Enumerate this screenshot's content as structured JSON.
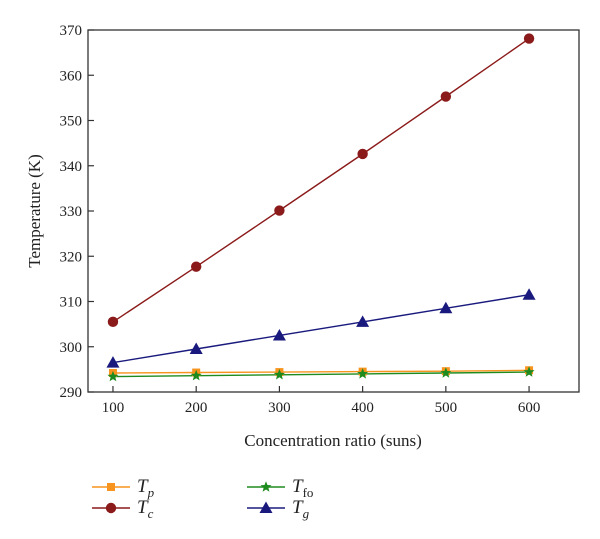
{
  "chart_data": {
    "type": "line",
    "xlabel": "Concentration ratio (suns)",
    "ylabel": "Temperature (K)",
    "xlim": [
      70,
      660
    ],
    "ylim": [
      290,
      370
    ],
    "xticks": [
      "100",
      "200",
      "300",
      "400",
      "500",
      "600"
    ],
    "yticks": [
      "290",
      "300",
      "310",
      "320",
      "330",
      "340",
      "350",
      "360",
      "370"
    ],
    "grid": false,
    "legend_position": "bottom",
    "x": [
      100,
      200,
      300,
      400,
      500,
      600
    ],
    "series": [
      {
        "name": "T",
        "sub": "p",
        "marker": "square",
        "color": "#F7941D",
        "values": [
          294.2,
          294.3,
          294.4,
          294.5,
          294.6,
          294.8
        ]
      },
      {
        "name": "T",
        "sub": "c",
        "marker": "circle",
        "color": "#8B1A1A",
        "values": [
          305.5,
          317.7,
          330.1,
          342.6,
          355.3,
          368.1
        ]
      },
      {
        "name": "T",
        "sub": "fo",
        "marker": "star",
        "color": "#1E8B1E",
        "values": [
          293.4,
          293.6,
          293.8,
          294.0,
          294.2,
          294.4
        ]
      },
      {
        "name": "T",
        "sub": "g",
        "marker": "triangle",
        "color": "#1A1A7E",
        "values": [
          296.5,
          299.5,
          302.5,
          305.5,
          308.5,
          311.5
        ]
      }
    ]
  }
}
